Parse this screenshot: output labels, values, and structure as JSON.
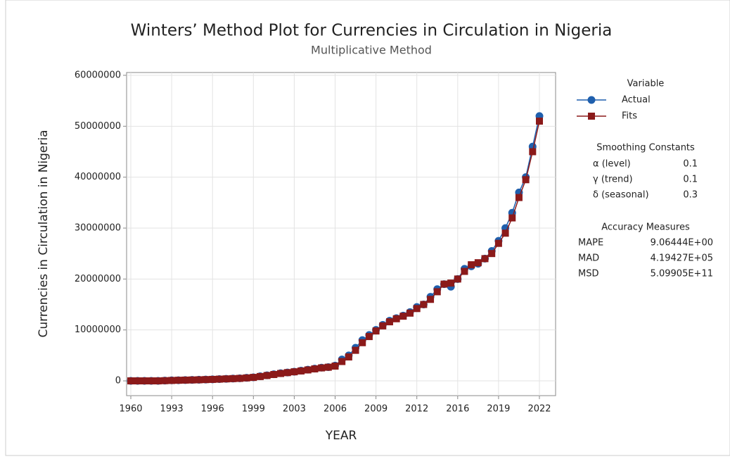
{
  "chart_data": {
    "type": "line",
    "title": "Winters’ Method Plot for Currencies in Circulation in Nigeria",
    "subtitle": "Multiplicative Method",
    "x_label": "YEAR",
    "y_label": "Currencies in Circulation in Nigeria",
    "categories": [
      "1960",
      null,
      null,
      null,
      null,
      null,
      "1993",
      null,
      null,
      null,
      null,
      null,
      "1996",
      null,
      null,
      null,
      null,
      null,
      "1999",
      null,
      null,
      null,
      null,
      null,
      "2003",
      null,
      null,
      null,
      null,
      null,
      "2006",
      null,
      null,
      null,
      null,
      null,
      "2009",
      null,
      null,
      null,
      null,
      null,
      "2012",
      null,
      null,
      null,
      null,
      null,
      "2016",
      null,
      null,
      null,
      null,
      null,
      "2019",
      null,
      null,
      null,
      null,
      null,
      "2022"
    ],
    "ylim": [
      -2900000,
      60550000
    ],
    "yticks": [
      0,
      10000000,
      20000000,
      30000000,
      40000000,
      50000000,
      60000000
    ],
    "grid": true,
    "legend_title": "Variable",
    "series": [
      {
        "name": "Actual",
        "color": "#1f5fad",
        "marker": "circle",
        "values": [
          0,
          0,
          0,
          0,
          0,
          50000,
          100000,
          130000,
          160000,
          190000,
          220000,
          260000,
          300000,
          350000,
          400000,
          450000,
          500000,
          600000,
          700000,
          900000,
          1100000,
          1300000,
          1500000,
          1650000,
          1800000,
          2000000,
          2200000,
          2400000,
          2600000,
          2700000,
          3000000,
          4200000,
          5000000,
          6500000,
          8000000,
          9000000,
          10000000,
          11000000,
          11800000,
          12300000,
          12800000,
          13500000,
          14500000,
          15000000,
          16500000,
          18000000,
          19000000,
          18500000,
          20000000,
          22000000,
          22500000,
          23000000,
          24000000,
          25500000,
          27500000,
          30000000,
          33000000,
          37000000,
          40000000,
          46000000,
          52000000
        ]
      },
      {
        "name": "Fits",
        "color": "#8b1a1a",
        "marker": "square",
        "values": [
          0,
          0,
          0,
          0,
          0,
          40000,
          80000,
          120000,
          150000,
          180000,
          210000,
          250000,
          290000,
          340000,
          390000,
          440000,
          490000,
          580000,
          680000,
          850000,
          1050000,
          1250000,
          1450000,
          1620000,
          1780000,
          1950000,
          2150000,
          2350000,
          2550000,
          2680000,
          2900000,
          3800000,
          4700000,
          6000000,
          7500000,
          8700000,
          9800000,
          10800000,
          11600000,
          12200000,
          12700000,
          13300000,
          14200000,
          15000000,
          16000000,
          17500000,
          19000000,
          19200000,
          20000000,
          21500000,
          22800000,
          23200000,
          24000000,
          25000000,
          27000000,
          29000000,
          32000000,
          36000000,
          39500000,
          45000000,
          51000000
        ]
      }
    ],
    "smoothing_constants": {
      "title": "Smoothing Constants",
      "rows": [
        [
          "α (level)",
          "0.1"
        ],
        [
          "γ (trend)",
          "0.1"
        ],
        [
          "δ (seasonal)",
          "0.3"
        ]
      ]
    },
    "accuracy_measures": {
      "title": "Accuracy Measures",
      "rows": [
        [
          "MAPE",
          "9.06444E+00"
        ],
        [
          "MAD",
          "4.19427E+05"
        ],
        [
          "MSD",
          "5.09905E+11"
        ]
      ]
    }
  }
}
